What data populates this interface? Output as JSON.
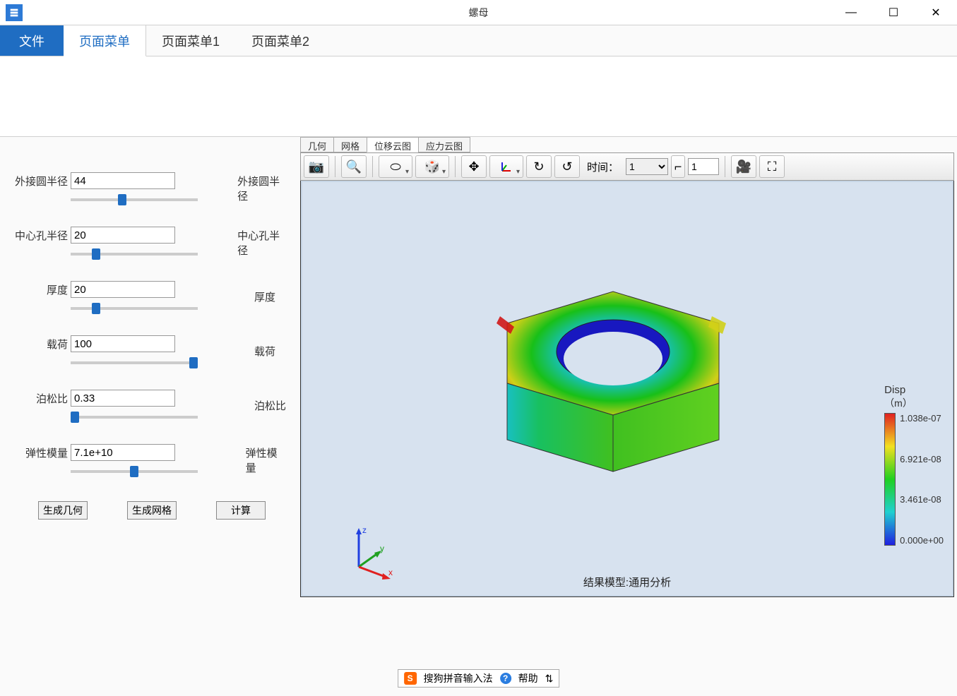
{
  "window": {
    "title": "螺母",
    "minimize": "—",
    "maximize": "☐",
    "close": "✕"
  },
  "menubar": {
    "file": "文件",
    "tabs": [
      "页面菜单",
      "页面菜单1",
      "页面菜单2"
    ],
    "active_index": 0
  },
  "params": [
    {
      "label": "外接圆半径",
      "value": "44",
      "right": "外接圆半径",
      "slider_pct": 40
    },
    {
      "label": "中心孔半径",
      "value": "20",
      "right": "中心孔半径",
      "slider_pct": 18
    },
    {
      "label": "厚度",
      "value": "20",
      "right": "厚度",
      "slider_pct": 18
    },
    {
      "label": "载荷",
      "value": "100",
      "right": "载荷",
      "slider_pct": 100
    },
    {
      "label": "泊松比",
      "value": "0.33",
      "right": "泊松比",
      "slider_pct": 0
    },
    {
      "label": "弹性模量",
      "value": "7.1e+10",
      "right": "弹性模量",
      "slider_pct": 50
    }
  ],
  "actions": {
    "gen_geom": "生成几何",
    "gen_mesh": "生成网格",
    "compute": "计算"
  },
  "view_tabs": {
    "items": [
      "几何",
      "网格",
      "位移云图",
      "应力云图"
    ],
    "active_index": 2
  },
  "toolbar": {
    "time_label": "时间：",
    "time_select": "1",
    "spin_value": "1"
  },
  "legend": {
    "title1": "Disp",
    "title2": "（m）",
    "ticks": [
      "1.038e-07",
      "6.921e-08",
      "3.461e-08",
      "0.000e+00"
    ],
    "colors": {
      "top": "#e02020",
      "q1": "#f2e020",
      "mid": "#20d020",
      "q3": "#20d0d0",
      "bot": "#2020e0"
    }
  },
  "result_label": "结果模型:通用分析",
  "viewport": {
    "background": "#d7e2ef",
    "border": "#c7d6e6"
  },
  "axes": {
    "x": "x",
    "y": "y",
    "z": "z",
    "x_color": "#e02020",
    "y_color": "#20a020",
    "z_color": "#2040e0"
  },
  "ime": {
    "name": "搜狗拼音输入法",
    "help": "帮助",
    "menu_glyph": "⇅"
  }
}
